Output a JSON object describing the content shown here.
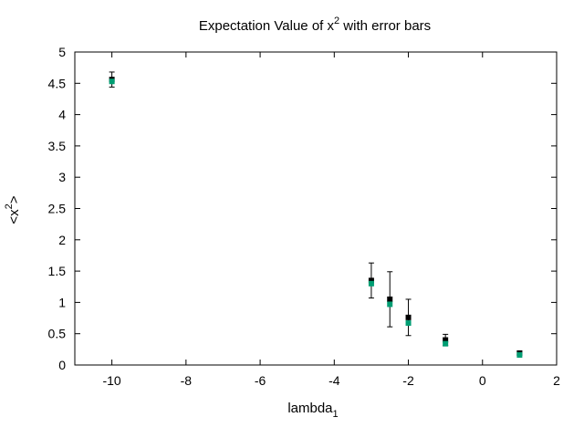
{
  "chart_data": {
    "type": "scatter",
    "title": {
      "base": "Expectation Value of x",
      "sup": "2",
      "rest": " with error bars"
    },
    "xlabel": {
      "base": "lambda",
      "sub": "1"
    },
    "ylabel": {
      "pre": "<x",
      "sup": "2",
      "post": ">"
    },
    "xlim": [
      -11,
      2
    ],
    "ylim": [
      0,
      5
    ],
    "xticks": [
      -10,
      -8,
      -6,
      -4,
      -2,
      0,
      2
    ],
    "yticks": [
      0,
      0.5,
      1,
      1.5,
      2,
      2.5,
      3,
      3.5,
      4,
      4.5,
      5
    ],
    "grid": false,
    "series": [
      {
        "color": "#000000",
        "points": [
          {
            "x": -10,
            "y": 4.56,
            "err": 0.12
          },
          {
            "x": -3,
            "y": 1.35,
            "err": 0.28
          },
          {
            "x": -2.5,
            "y": 1.05,
            "err": 0.44
          },
          {
            "x": -2,
            "y": 0.76,
            "err": 0.29
          },
          {
            "x": -1,
            "y": 0.4,
            "err": 0.09
          },
          {
            "x": 1,
            "y": 0.19,
            "err": 0.03
          }
        ]
      },
      {
        "color": "#009e73",
        "points": [
          {
            "x": -10,
            "y": 4.53
          },
          {
            "x": -3,
            "y": 1.3
          },
          {
            "x": -2.5,
            "y": 0.97
          },
          {
            "x": -2,
            "y": 0.67
          },
          {
            "x": -1,
            "y": 0.34
          },
          {
            "x": 1,
            "y": 0.16
          }
        ]
      }
    ]
  }
}
